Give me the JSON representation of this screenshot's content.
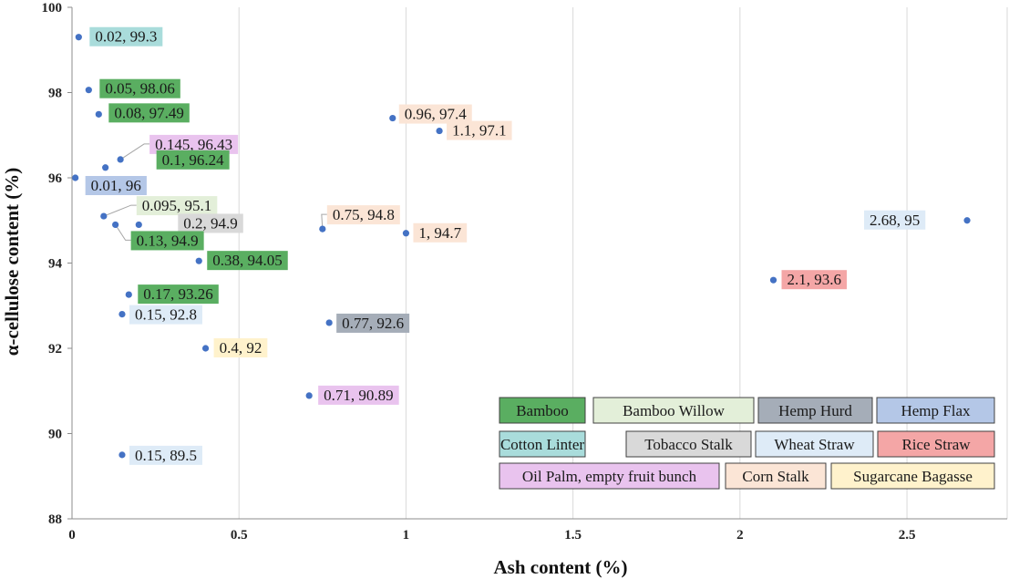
{
  "chart_data": {
    "type": "scatter",
    "xlabel": "Ash content (%)",
    "ylabel": "α-cellulose content (%)",
    "xlim": [
      0,
      2.8
    ],
    "ylim": [
      88,
      100
    ],
    "x_ticks": [
      "0",
      "0.5",
      "1",
      "1.5",
      "2",
      "2.5"
    ],
    "x_tick_values": [
      0,
      0.5,
      1,
      1.5,
      2,
      2.5
    ],
    "y_ticks": [
      "88",
      "90",
      "92",
      "94",
      "96",
      "98",
      "100"
    ],
    "y_tick_values": [
      88,
      90,
      92,
      94,
      96,
      98,
      100
    ],
    "grid": "vertical",
    "marker_color": "#4472c4",
    "legend_placement": "bottom-right",
    "legend": [
      {
        "name": "Bamboo",
        "color": "#5aae61"
      },
      {
        "name": "Bamboo Willow",
        "color": "#e3efd9"
      },
      {
        "name": "Hemp Hurd",
        "color": "#a5adb8"
      },
      {
        "name": "Hemp Flax",
        "color": "#b4c7e7"
      },
      {
        "name": "Cotton Linter",
        "color": "#a9dcdb"
      },
      {
        "name": "Tobacco Stalk",
        "color": "#d9d9d9"
      },
      {
        "name": "Wheat Straw",
        "color": "#deebf7"
      },
      {
        "name": "Rice Straw",
        "color": "#f4a6a6"
      },
      {
        "name": "Oil Palm, empty fruit bunch",
        "color": "#e9c3ee"
      },
      {
        "name": "Corn Stalk",
        "color": "#fbe5d6"
      },
      {
        "name": "Sugarcane Bagasse",
        "color": "#fff2cc"
      }
    ],
    "points": [
      {
        "x": 0.02,
        "y": 99.3,
        "label": "0.02, 99.3",
        "category": "Cotton Linter"
      },
      {
        "x": 0.05,
        "y": 98.06,
        "label": "0.05, 98.06",
        "category": "Bamboo"
      },
      {
        "x": 0.08,
        "y": 97.49,
        "label": "0.08, 97.49",
        "category": "Bamboo"
      },
      {
        "x": 0.145,
        "y": 96.43,
        "label": "0.145, 96.43",
        "category": "Oil Palm, empty fruit bunch"
      },
      {
        "x": 0.1,
        "y": 96.24,
        "label": "0.1, 96.24",
        "category": "Bamboo"
      },
      {
        "x": 0.01,
        "y": 96,
        "label": "0.01, 96",
        "category": "Hemp Flax"
      },
      {
        "x": 0.095,
        "y": 95.1,
        "label": "0.095, 95.1",
        "category": "Bamboo Willow"
      },
      {
        "x": 0.2,
        "y": 94.9,
        "label": "0.2, 94.9",
        "category": "Tobacco Stalk"
      },
      {
        "x": 0.13,
        "y": 94.9,
        "label": "0.13, 94.9",
        "category": "Bamboo"
      },
      {
        "x": 0.38,
        "y": 94.05,
        "label": "0.38, 94.05",
        "category": "Bamboo"
      },
      {
        "x": 0.17,
        "y": 93.26,
        "label": "0.17, 93.26",
        "category": "Bamboo"
      },
      {
        "x": 0.15,
        "y": 92.8,
        "label": "0.15, 92.8",
        "category": "Wheat Straw"
      },
      {
        "x": 0.4,
        "y": 92,
        "label": "0.4, 92",
        "category": "Sugarcane Bagasse"
      },
      {
        "x": 0.15,
        "y": 89.5,
        "label": "0.15, 89.5",
        "category": "Wheat Straw"
      },
      {
        "x": 0.96,
        "y": 97.4,
        "label": "0.96, 97.4",
        "category": "Corn Stalk"
      },
      {
        "x": 1.1,
        "y": 97.1,
        "label": "1.1, 97.1",
        "category": "Corn Stalk"
      },
      {
        "x": 0.75,
        "y": 94.8,
        "label": "0.75, 94.8",
        "category": "Corn Stalk"
      },
      {
        "x": 1,
        "y": 94.7,
        "label": "1, 94.7",
        "category": "Corn Stalk"
      },
      {
        "x": 0.77,
        "y": 92.6,
        "label": "0.77, 92.6",
        "category": "Hemp Hurd"
      },
      {
        "x": 0.71,
        "y": 90.89,
        "label": "0.71, 90.89",
        "category": "Oil Palm, empty fruit bunch"
      },
      {
        "x": 2.68,
        "y": 95,
        "label": "2.68, 95",
        "category": "Wheat Straw"
      },
      {
        "x": 2.1,
        "y": 93.6,
        "label": "2.1, 93.6",
        "category": "Rice Straw"
      }
    ]
  }
}
